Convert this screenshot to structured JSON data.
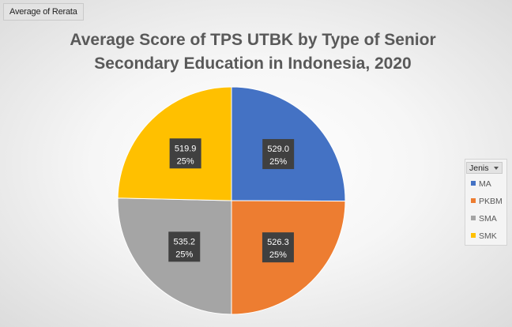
{
  "field_button": "Average of Rerata",
  "chart_data": {
    "type": "pie",
    "title": "Average Score of TPS UTBK by Type of Senior Secondary Education in Indonesia, 2020",
    "title_lines": [
      "Average Score of TPS UTBK by Type of Senior",
      "Secondary Education in Indonesia, 2020"
    ],
    "legend_title": "Jenis",
    "legend_position": "right",
    "start_angle_deg": 0,
    "direction": "clockwise",
    "slices": [
      {
        "label": "MA",
        "value": 529.0,
        "value_label": "529.0",
        "percent_label": "25%",
        "color": "#4472c4"
      },
      {
        "label": "PKBM",
        "value": 526.3,
        "value_label": "526.3",
        "percent_label": "25%",
        "color": "#ed7d31"
      },
      {
        "label": "SMA",
        "value": 535.2,
        "value_label": "535.2",
        "percent_label": "25%",
        "color": "#a5a5a5"
      },
      {
        "label": "SMK",
        "value": 519.9,
        "value_label": "519.9",
        "percent_label": "25%",
        "color": "#ffc000"
      }
    ]
  }
}
